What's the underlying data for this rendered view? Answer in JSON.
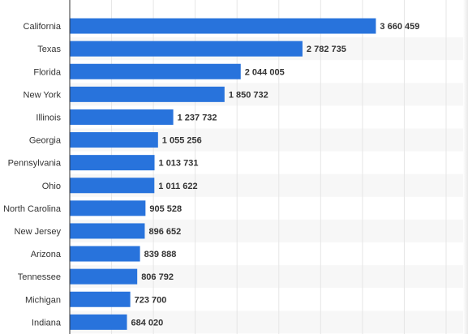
{
  "chart_data": {
    "type": "bar",
    "orientation": "horizontal",
    "title": "",
    "xlabel": "",
    "ylabel": "",
    "categories": [
      "California",
      "Texas",
      "Florida",
      "New York",
      "Illinois",
      "Georgia",
      "Pennsylvania",
      "Ohio",
      "North Carolina",
      "New Jersey",
      "Arizona",
      "Tennessee",
      "Michigan",
      "Indiana"
    ],
    "values": [
      3660459,
      2782735,
      2044005,
      1850732,
      1237732,
      1055256,
      1013731,
      1011622,
      905528,
      896652,
      839888,
      806792,
      723700,
      684020
    ],
    "value_labels": [
      "3 660 459",
      "2 782 735",
      "2 044 005",
      "1 850 732",
      "1 237 732",
      "1 055 256",
      "1 013 731",
      "1 011 622",
      "905 528",
      "896 652",
      "839 888",
      "806 792",
      "723 700",
      "684 020"
    ],
    "xlim": [
      0,
      4500000
    ],
    "grid": true,
    "bar_color": "#2873dc",
    "stripe_color": "#f7f7f7",
    "grid_color": "#e6e6e6",
    "axis_color": "#333333",
    "text_color": "#333333"
  }
}
